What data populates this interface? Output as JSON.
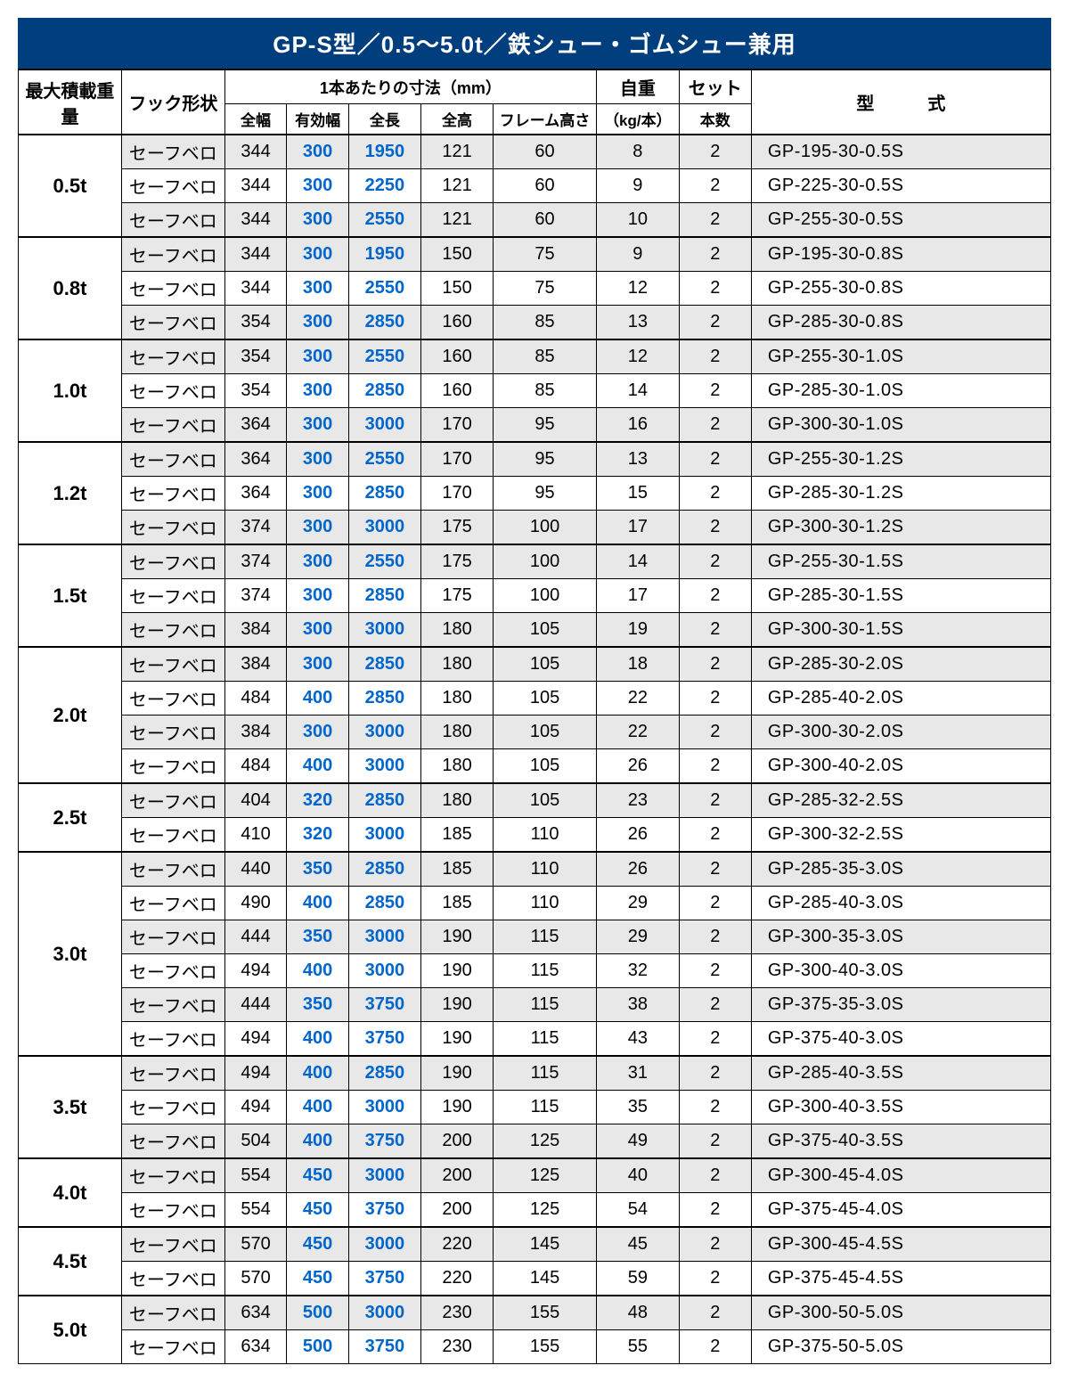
{
  "title": "GP-S型／0.5～5.0t／鉄シュー・ゴムシュー兼用",
  "headers": {
    "load": "最大積載重量",
    "hook": "フック形状",
    "dims_group": "1本あたりの寸法（mm）",
    "weight": "自重",
    "weight_unit": "（kg/本）",
    "set": "セット",
    "set_unit": "本数",
    "model": "型　　　式",
    "width": "全幅",
    "eff_width": "有効幅",
    "length": "全長",
    "height": "全高",
    "frame": "フレーム高さ"
  },
  "hook_label": "セーフベロ",
  "groups": [
    {
      "load": "0.5t",
      "rows": [
        {
          "w": "344",
          "ew": "300",
          "len": "1950",
          "h": "121",
          "fh": "60",
          "wt": "8",
          "set": "2",
          "model": "GP-195-30-0.5S"
        },
        {
          "w": "344",
          "ew": "300",
          "len": "2250",
          "h": "121",
          "fh": "60",
          "wt": "9",
          "set": "2",
          "model": "GP-225-30-0.5S"
        },
        {
          "w": "344",
          "ew": "300",
          "len": "2550",
          "h": "121",
          "fh": "60",
          "wt": "10",
          "set": "2",
          "model": "GP-255-30-0.5S"
        }
      ]
    },
    {
      "load": "0.8t",
      "rows": [
        {
          "w": "344",
          "ew": "300",
          "len": "1950",
          "h": "150",
          "fh": "75",
          "wt": "9",
          "set": "2",
          "model": "GP-195-30-0.8S"
        },
        {
          "w": "344",
          "ew": "300",
          "len": "2550",
          "h": "150",
          "fh": "75",
          "wt": "12",
          "set": "2",
          "model": "GP-255-30-0.8S"
        },
        {
          "w": "354",
          "ew": "300",
          "len": "2850",
          "h": "160",
          "fh": "85",
          "wt": "13",
          "set": "2",
          "model": "GP-285-30-0.8S"
        }
      ]
    },
    {
      "load": "1.0t",
      "rows": [
        {
          "w": "354",
          "ew": "300",
          "len": "2550",
          "h": "160",
          "fh": "85",
          "wt": "12",
          "set": "2",
          "model": "GP-255-30-1.0S"
        },
        {
          "w": "354",
          "ew": "300",
          "len": "2850",
          "h": "160",
          "fh": "85",
          "wt": "14",
          "set": "2",
          "model": "GP-285-30-1.0S"
        },
        {
          "w": "364",
          "ew": "300",
          "len": "3000",
          "h": "170",
          "fh": "95",
          "wt": "16",
          "set": "2",
          "model": "GP-300-30-1.0S"
        }
      ]
    },
    {
      "load": "1.2t",
      "rows": [
        {
          "w": "364",
          "ew": "300",
          "len": "2550",
          "h": "170",
          "fh": "95",
          "wt": "13",
          "set": "2",
          "model": "GP-255-30-1.2S"
        },
        {
          "w": "364",
          "ew": "300",
          "len": "2850",
          "h": "170",
          "fh": "95",
          "wt": "15",
          "set": "2",
          "model": "GP-285-30-1.2S"
        },
        {
          "w": "374",
          "ew": "300",
          "len": "3000",
          "h": "175",
          "fh": "100",
          "wt": "17",
          "set": "2",
          "model": "GP-300-30-1.2S"
        }
      ]
    },
    {
      "load": "1.5t",
      "rows": [
        {
          "w": "374",
          "ew": "300",
          "len": "2550",
          "h": "175",
          "fh": "100",
          "wt": "14",
          "set": "2",
          "model": "GP-255-30-1.5S"
        },
        {
          "w": "374",
          "ew": "300",
          "len": "2850",
          "h": "175",
          "fh": "100",
          "wt": "17",
          "set": "2",
          "model": "GP-285-30-1.5S"
        },
        {
          "w": "384",
          "ew": "300",
          "len": "3000",
          "h": "180",
          "fh": "105",
          "wt": "19",
          "set": "2",
          "model": "GP-300-30-1.5S"
        }
      ]
    },
    {
      "load": "2.0t",
      "rows": [
        {
          "w": "384",
          "ew": "300",
          "len": "2850",
          "h": "180",
          "fh": "105",
          "wt": "18",
          "set": "2",
          "model": "GP-285-30-2.0S"
        },
        {
          "w": "484",
          "ew": "400",
          "len": "2850",
          "h": "180",
          "fh": "105",
          "wt": "22",
          "set": "2",
          "model": "GP-285-40-2.0S"
        },
        {
          "w": "384",
          "ew": "300",
          "len": "3000",
          "h": "180",
          "fh": "105",
          "wt": "22",
          "set": "2",
          "model": "GP-300-30-2.0S"
        },
        {
          "w": "484",
          "ew": "400",
          "len": "3000",
          "h": "180",
          "fh": "105",
          "wt": "26",
          "set": "2",
          "model": "GP-300-40-2.0S"
        }
      ]
    },
    {
      "load": "2.5t",
      "rows": [
        {
          "w": "404",
          "ew": "320",
          "len": "2850",
          "h": "180",
          "fh": "105",
          "wt": "23",
          "set": "2",
          "model": "GP-285-32-2.5S"
        },
        {
          "w": "410",
          "ew": "320",
          "len": "3000",
          "h": "185",
          "fh": "110",
          "wt": "26",
          "set": "2",
          "model": "GP-300-32-2.5S"
        }
      ]
    },
    {
      "load": "3.0t",
      "rows": [
        {
          "w": "440",
          "ew": "350",
          "len": "2850",
          "h": "185",
          "fh": "110",
          "wt": "26",
          "set": "2",
          "model": "GP-285-35-3.0S"
        },
        {
          "w": "490",
          "ew": "400",
          "len": "2850",
          "h": "185",
          "fh": "110",
          "wt": "29",
          "set": "2",
          "model": "GP-285-40-3.0S"
        },
        {
          "w": "444",
          "ew": "350",
          "len": "3000",
          "h": "190",
          "fh": "115",
          "wt": "29",
          "set": "2",
          "model": "GP-300-35-3.0S"
        },
        {
          "w": "494",
          "ew": "400",
          "len": "3000",
          "h": "190",
          "fh": "115",
          "wt": "32",
          "set": "2",
          "model": "GP-300-40-3.0S"
        },
        {
          "w": "444",
          "ew": "350",
          "len": "3750",
          "h": "190",
          "fh": "115",
          "wt": "38",
          "set": "2",
          "model": "GP-375-35-3.0S"
        },
        {
          "w": "494",
          "ew": "400",
          "len": "3750",
          "h": "190",
          "fh": "115",
          "wt": "43",
          "set": "2",
          "model": "GP-375-40-3.0S"
        }
      ]
    },
    {
      "load": "3.5t",
      "rows": [
        {
          "w": "494",
          "ew": "400",
          "len": "2850",
          "h": "190",
          "fh": "115",
          "wt": "31",
          "set": "2",
          "model": "GP-285-40-3.5S"
        },
        {
          "w": "494",
          "ew": "400",
          "len": "3000",
          "h": "190",
          "fh": "115",
          "wt": "35",
          "set": "2",
          "model": "GP-300-40-3.5S"
        },
        {
          "w": "504",
          "ew": "400",
          "len": "3750",
          "h": "200",
          "fh": "125",
          "wt": "49",
          "set": "2",
          "model": "GP-375-40-3.5S"
        }
      ]
    },
    {
      "load": "4.0t",
      "rows": [
        {
          "w": "554",
          "ew": "450",
          "len": "3000",
          "h": "200",
          "fh": "125",
          "wt": "40",
          "set": "2",
          "model": "GP-300-45-4.0S"
        },
        {
          "w": "554",
          "ew": "450",
          "len": "3750",
          "h": "200",
          "fh": "125",
          "wt": "54",
          "set": "2",
          "model": "GP-375-45-4.0S"
        }
      ]
    },
    {
      "load": "4.5t",
      "rows": [
        {
          "w": "570",
          "ew": "450",
          "len": "3000",
          "h": "220",
          "fh": "145",
          "wt": "45",
          "set": "2",
          "model": "GP-300-45-4.5S"
        },
        {
          "w": "570",
          "ew": "450",
          "len": "3750",
          "h": "220",
          "fh": "145",
          "wt": "59",
          "set": "2",
          "model": "GP-375-45-4.5S"
        }
      ]
    },
    {
      "load": "5.0t",
      "rows": [
        {
          "w": "634",
          "ew": "500",
          "len": "3000",
          "h": "230",
          "fh": "155",
          "wt": "48",
          "set": "2",
          "model": "GP-300-50-5.0S"
        },
        {
          "w": "634",
          "ew": "500",
          "len": "3750",
          "h": "230",
          "fh": "155",
          "wt": "55",
          "set": "2",
          "model": "GP-375-50-5.0S"
        }
      ]
    }
  ],
  "colors": {
    "title_bg": "#003e7e",
    "title_fg": "#ffffff",
    "blue_text": "#0066cc",
    "band_a": "#ffffff",
    "band_b": "#e8e8e8",
    "border": "#000000"
  },
  "col_widths_pct": [
    10,
    10,
    6,
    6,
    7,
    7,
    10,
    8,
    7,
    29
  ]
}
